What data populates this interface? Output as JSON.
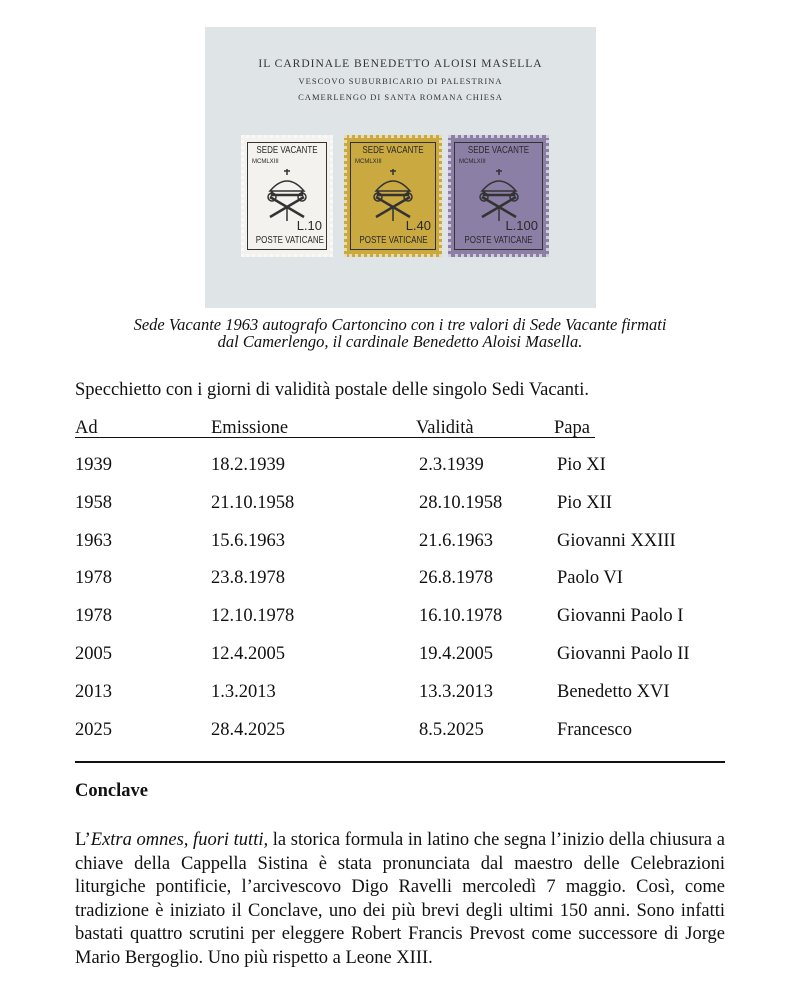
{
  "photo": {
    "header": [
      "Il Cardinale Benedetto Aloisi Masella",
      "Vescovo Suburbicario di Palestrina",
      "Camerlengo di Santa Romana Chiesa"
    ],
    "stamps": [
      {
        "title": "SEDE VACANTE",
        "year": "MCMLXIII",
        "value": "L.10",
        "country": "POSTE VATICANE",
        "color": "#f4f2ee"
      },
      {
        "title": "SEDE VACANTE",
        "year": "MCMLXIII",
        "value": "L.40",
        "country": "POSTE VATICANE",
        "color": "#c9a940"
      },
      {
        "title": "SEDE VACANTE",
        "year": "MCMLXIII",
        "value": "L.100",
        "country": "POSTE VATICANE",
        "color": "#8b7fa6"
      }
    ]
  },
  "caption": [
    "Sede Vacante 1963 autografo  Cartoncino con i tre valori di Sede Vacante firmati",
    "dal Camerlengo, il cardinale Benedetto Aloisi Masella."
  ],
  "intro": "Specchietto con i giorni di validità postale delle singolo Sedi Vacanti.",
  "table": {
    "headers": [
      "Ad",
      "Emissione",
      "Validità",
      "Papa"
    ],
    "rows": [
      [
        "1939",
        "18.2.1939",
        "2.3.1939",
        "Pio XI"
      ],
      [
        "1958",
        "21.10.1958",
        "28.10.1958",
        "Pio XII"
      ],
      [
        "1963",
        "15.6.1963",
        "21.6.1963",
        "Giovanni XXIII"
      ],
      [
        "1978",
        "23.8.1978",
        "26.8.1978",
        "Paolo VI"
      ],
      [
        "1978",
        "12.10.1978",
        "16.10.1978",
        "Giovanni Paolo I"
      ],
      [
        "2005",
        "12.4.2005",
        "19.4.2005",
        "Giovanni Paolo II"
      ],
      [
        "2013",
        "1.3.2013",
        "13.3.2013",
        "Benedetto XVI"
      ],
      [
        "2025",
        "28.4.2025",
        "8.5.2025",
        "Francesco"
      ]
    ]
  },
  "section": {
    "title": "Conclave",
    "lead": "L’",
    "italic": "Extra omnes, fuori tutti,",
    "body": " la storica formula in latino che segna l’inizio della chiusura a chiave della Cappella Sistina è stata pronunciata dal maestro delle Celebrazioni liturgiche pontificie, l’arcivescovo Digo Ravelli  mercoledì 7 maggio. Così, come tradizione è iniziato il Conclave, uno dei più brevi degli ultimi 150 anni. Sono infatti bastati quattro scrutini per eleggere Robert Francis Prevost come successore di Jorge Mario Bergoglio. Uno più rispetto a Leone XIII."
  }
}
